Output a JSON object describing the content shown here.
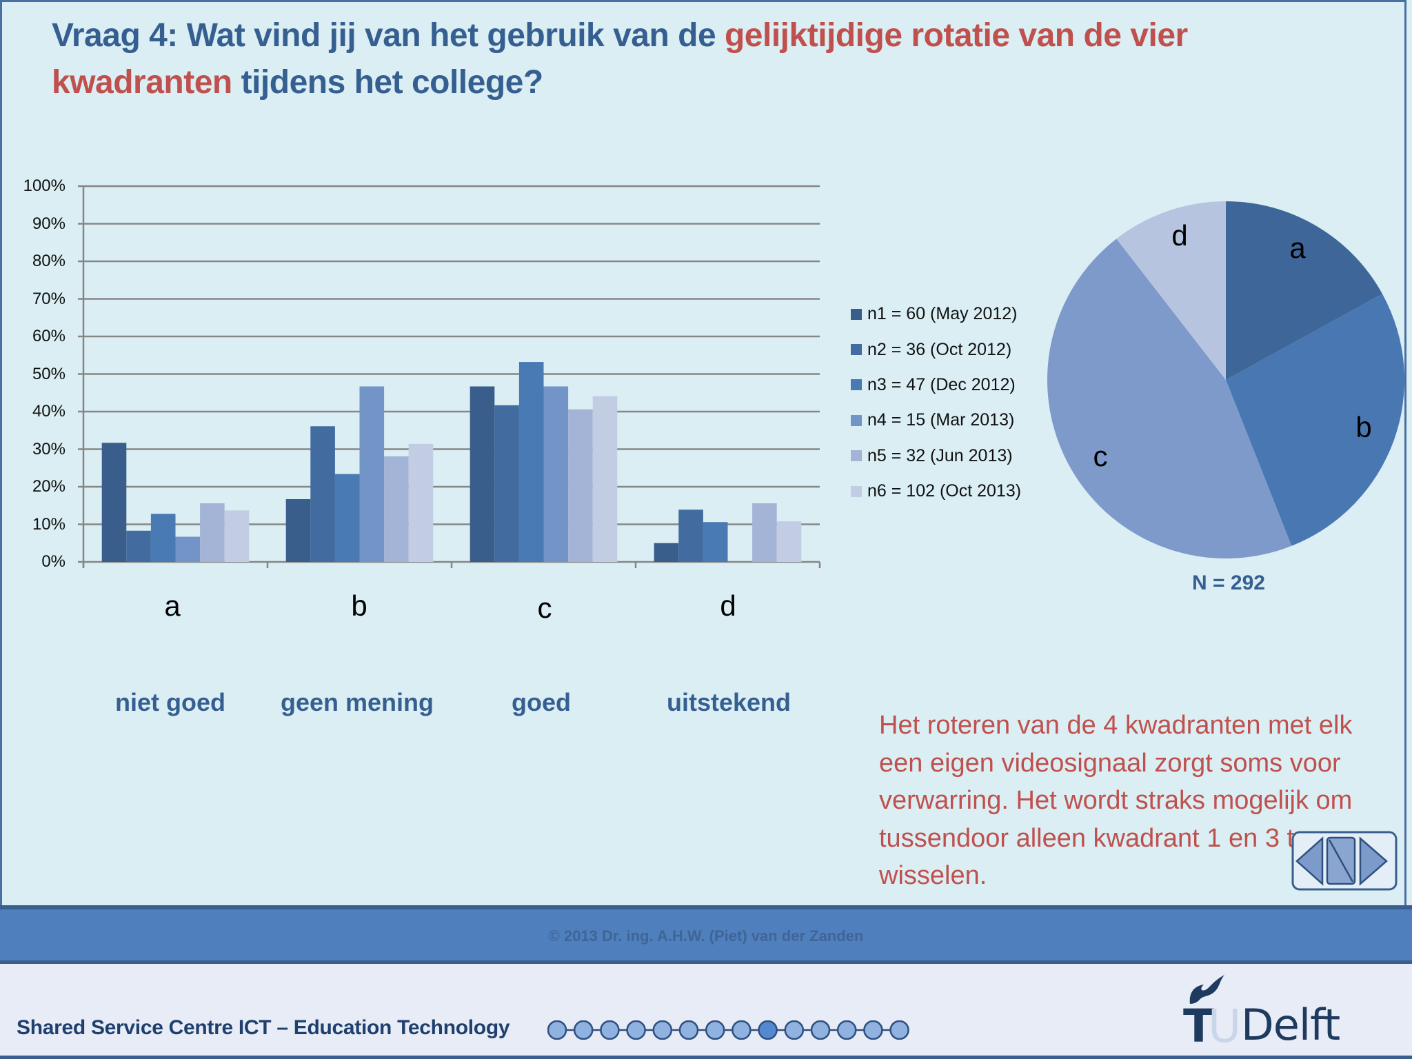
{
  "title": {
    "part1": "Vraag 4: Wat vind jij van het gebruik van de ",
    "highlight1": "gelijktijdige rotatie van de vier",
    "highlight2": "kwadranten",
    "part2": " tijdens het college?"
  },
  "colors": {
    "title_blue": "#365f91",
    "highlight_red": "#c0504d",
    "background": "#daeef3",
    "series": [
      "#3a5e8c",
      "#426ca0",
      "#4a7ab4",
      "#7294c6",
      "#a3b4d6",
      "#c2cde3"
    ]
  },
  "chart_data": [
    {
      "type": "bar",
      "title": "",
      "xlabel": "",
      "ylabel": "",
      "ylim": [
        0,
        100
      ],
      "yticks": [
        "0%",
        "10%",
        "20%",
        "30%",
        "40%",
        "50%",
        "60%",
        "70%",
        "80%",
        "90%",
        "100%"
      ],
      "grid": true,
      "legend_position": "right",
      "categories": [
        "a",
        "b",
        "c",
        "d"
      ],
      "category_descriptions": [
        "niet goed",
        "geen mening",
        "goed",
        "uitstekend"
      ],
      "series": [
        {
          "name": "n1 = 60 (May 2012)",
          "values": [
            31.7,
            16.7,
            46.7,
            5.0
          ]
        },
        {
          "name": "n2 = 36 (Oct 2012)",
          "values": [
            8.3,
            36.1,
            41.7,
            13.9
          ]
        },
        {
          "name": "n3 = 47 (Dec 2012)",
          "values": [
            12.8,
            23.4,
            53.2,
            10.6
          ]
        },
        {
          "name": "n4 = 15 (Mar 2013)",
          "values": [
            6.7,
            46.7,
            46.7,
            0.0
          ]
        },
        {
          "name": "n5 = 32 (Jun 2013)",
          "values": [
            15.6,
            28.1,
            40.6,
            15.6
          ]
        },
        {
          "name": "n6 = 102 (Oct 2013)",
          "values": [
            13.7,
            31.4,
            44.1,
            10.8
          ]
        }
      ]
    },
    {
      "type": "pie",
      "title": "",
      "annotation": "N = 292",
      "categories": [
        "a",
        "b",
        "c",
        "d"
      ],
      "values": [
        17,
        27,
        45.5,
        10.5
      ]
    }
  ],
  "axis": {
    "yticks": [
      "100%",
      "90%",
      "80%",
      "70%",
      "60%",
      "50%",
      "40%",
      "30%",
      "20%",
      "10%",
      "0%"
    ]
  },
  "categories": {
    "letters": [
      "a",
      "b",
      "c",
      "d"
    ],
    "labels": [
      "niet goed",
      "geen mening",
      "goed",
      "uitstekend"
    ]
  },
  "legend": [
    "n1 = 60 (May 2012)",
    "n2 = 36 (Oct 2012)",
    "n3 = 47 (Dec 2012)",
    "n4 = 15 (Mar 2013)",
    "n5 = 32 (Jun 2013)",
    "n6 = 102 (Oct 2013)"
  ],
  "pie": {
    "labels": [
      "a",
      "b",
      "c",
      "d"
    ],
    "total": "N = 292"
  },
  "note": "Het roteren van de 4 kwadranten met elk een eigen videosignaal zorgt soms voor verwarring. Het wordt straks mogelijk om tussendoor alleen kwadrant 1 en 3 te wisselen.",
  "footer": {
    "copyright": "© 2013  Dr. ing. A.H.W. (Piet) van der Zanden",
    "org": "Shared Service Centre ICT – Education Technology",
    "progress": {
      "total": 14,
      "current": 9
    },
    "logo": {
      "t": "T",
      "u": "U",
      "delft": "Delft"
    }
  }
}
